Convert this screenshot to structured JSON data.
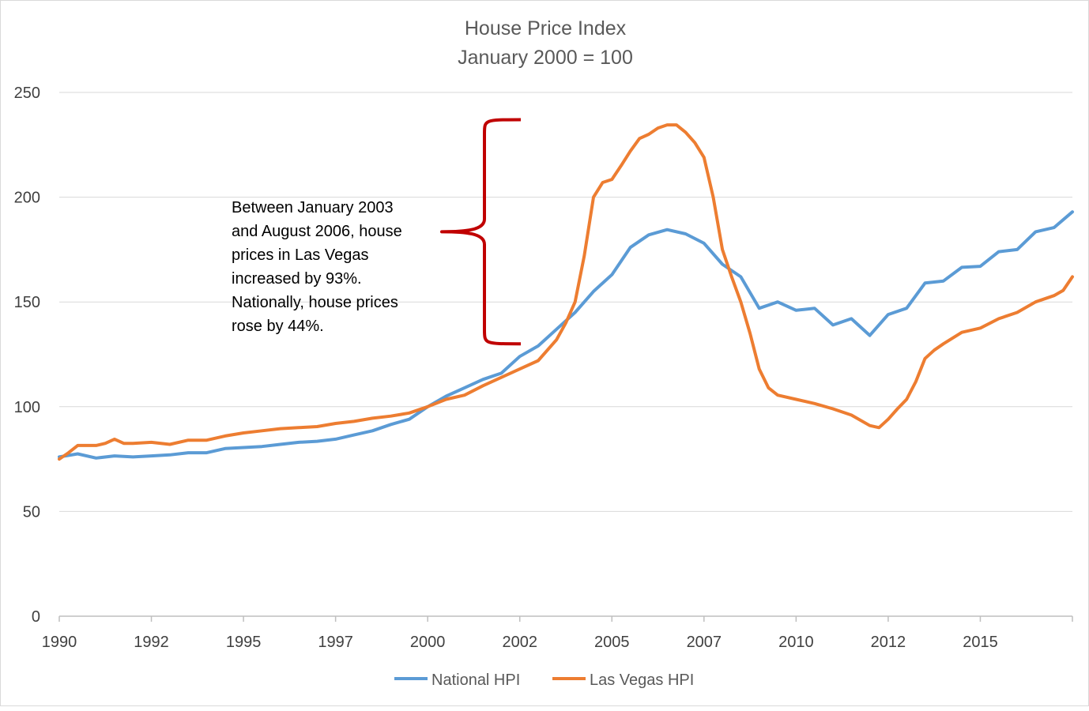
{
  "chart_data": {
    "type": "line",
    "title": "House Price Index",
    "subtitle": "January 2000 = 100",
    "xlabel": "",
    "ylabel": "",
    "ylim": [
      0,
      250
    ],
    "xlim": [
      1990.0,
      2017.5
    ],
    "yticks": [
      0,
      50,
      100,
      150,
      200,
      250
    ],
    "xtick_labels": [
      {
        "x": 1990.0,
        "label": "1990"
      },
      {
        "x": 1992.5,
        "label": "1992"
      },
      {
        "x": 1995.0,
        "label": "1995"
      },
      {
        "x": 1997.5,
        "label": "1997"
      },
      {
        "x": 2000.0,
        "label": "2000"
      },
      {
        "x": 2002.5,
        "label": "2002"
      },
      {
        "x": 2005.0,
        "label": "2005"
      },
      {
        "x": 2007.5,
        "label": "2007"
      },
      {
        "x": 2010.0,
        "label": "2010"
      },
      {
        "x": 2012.5,
        "label": "2012"
      },
      {
        "x": 2015.0,
        "label": "2015"
      }
    ],
    "grid": true,
    "legend_position": "bottom",
    "series": [
      {
        "name": "National HPI",
        "color": "#5b9bd5",
        "points": [
          [
            1990.0,
            76
          ],
          [
            1990.5,
            77.5
          ],
          [
            1991.0,
            75.5
          ],
          [
            1991.5,
            76.5
          ],
          [
            1992.0,
            76
          ],
          [
            1992.5,
            76.5
          ],
          [
            1993.0,
            77
          ],
          [
            1993.5,
            78
          ],
          [
            1994.0,
            78
          ],
          [
            1994.5,
            80
          ],
          [
            1995.0,
            80.5
          ],
          [
            1995.5,
            81
          ],
          [
            1996.0,
            82
          ],
          [
            1996.5,
            83
          ],
          [
            1997.0,
            83.5
          ],
          [
            1997.5,
            84.5
          ],
          [
            1998.0,
            86.5
          ],
          [
            1998.5,
            88.5
          ],
          [
            1999.0,
            91.5
          ],
          [
            1999.5,
            94
          ],
          [
            2000.0,
            100
          ],
          [
            2000.5,
            105
          ],
          [
            2001.0,
            109
          ],
          [
            2001.5,
            113
          ],
          [
            2002.0,
            116
          ],
          [
            2002.5,
            124
          ],
          [
            2003.0,
            129
          ],
          [
            2003.5,
            137
          ],
          [
            2004.0,
            145
          ],
          [
            2004.5,
            155
          ],
          [
            2005.0,
            163
          ],
          [
            2005.5,
            176
          ],
          [
            2006.0,
            182
          ],
          [
            2006.5,
            184.5
          ],
          [
            2007.0,
            182.5
          ],
          [
            2007.5,
            178
          ],
          [
            2008.0,
            168
          ],
          [
            2008.5,
            162
          ],
          [
            2009.0,
            147
          ],
          [
            2009.5,
            150
          ],
          [
            2010.0,
            146
          ],
          [
            2010.5,
            147
          ],
          [
            2011.0,
            139
          ],
          [
            2011.5,
            142
          ],
          [
            2012.0,
            134
          ],
          [
            2012.5,
            144
          ],
          [
            2013.0,
            147
          ],
          [
            2013.5,
            159
          ],
          [
            2014.0,
            160
          ],
          [
            2014.5,
            166.5
          ],
          [
            2015.0,
            167
          ],
          [
            2015.5,
            174
          ],
          [
            2016.0,
            175
          ],
          [
            2016.5,
            183.5
          ],
          [
            2017.0,
            185.5
          ],
          [
            2017.5,
            193
          ]
        ]
      },
      {
        "name": "Las Vegas HPI",
        "color": "#ed7d31",
        "points": [
          [
            1990.0,
            75
          ],
          [
            1990.25,
            78
          ],
          [
            1990.5,
            81.5
          ],
          [
            1991.0,
            81.5
          ],
          [
            1991.25,
            82.5
          ],
          [
            1991.5,
            84.5
          ],
          [
            1991.75,
            82.5
          ],
          [
            1992.0,
            82.5
          ],
          [
            1992.5,
            83
          ],
          [
            1993.0,
            82
          ],
          [
            1993.5,
            84
          ],
          [
            1994.0,
            84
          ],
          [
            1994.5,
            86
          ],
          [
            1995.0,
            87.5
          ],
          [
            1995.5,
            88.5
          ],
          [
            1996.0,
            89.5
          ],
          [
            1996.5,
            90
          ],
          [
            1997.0,
            90.5
          ],
          [
            1997.5,
            92
          ],
          [
            1998.0,
            93
          ],
          [
            1998.5,
            94.5
          ],
          [
            1999.0,
            95.5
          ],
          [
            1999.5,
            97
          ],
          [
            2000.0,
            100
          ],
          [
            2000.5,
            103.5
          ],
          [
            2001.0,
            105.5
          ],
          [
            2001.5,
            110
          ],
          [
            2002.0,
            114
          ],
          [
            2002.5,
            118
          ],
          [
            2003.0,
            122
          ],
          [
            2003.5,
            132
          ],
          [
            2003.75,
            140
          ],
          [
            2004.0,
            150
          ],
          [
            2004.25,
            172
          ],
          [
            2004.5,
            200
          ],
          [
            2004.75,
            207
          ],
          [
            2005.0,
            208.5
          ],
          [
            2005.25,
            215
          ],
          [
            2005.5,
            222
          ],
          [
            2005.75,
            228
          ],
          [
            2006.0,
            230
          ],
          [
            2006.25,
            233
          ],
          [
            2006.5,
            234.5
          ],
          [
            2006.75,
            234.5
          ],
          [
            2007.0,
            231
          ],
          [
            2007.25,
            226
          ],
          [
            2007.5,
            219
          ],
          [
            2007.75,
            200
          ],
          [
            2008.0,
            175
          ],
          [
            2008.25,
            162
          ],
          [
            2008.5,
            150
          ],
          [
            2008.75,
            135
          ],
          [
            2009.0,
            118
          ],
          [
            2009.25,
            109
          ],
          [
            2009.5,
            105.5
          ],
          [
            2010.0,
            103.5
          ],
          [
            2010.5,
            101.5
          ],
          [
            2011.0,
            99
          ],
          [
            2011.5,
            96
          ],
          [
            2012.0,
            91
          ],
          [
            2012.25,
            90
          ],
          [
            2012.5,
            94
          ],
          [
            2012.75,
            99
          ],
          [
            2013.0,
            103.5
          ],
          [
            2013.25,
            112
          ],
          [
            2013.5,
            123
          ],
          [
            2013.75,
            127
          ],
          [
            2014.0,
            130
          ],
          [
            2014.5,
            135.5
          ],
          [
            2015.0,
            137.5
          ],
          [
            2015.5,
            142
          ],
          [
            2016.0,
            145
          ],
          [
            2016.5,
            150
          ],
          [
            2017.0,
            153
          ],
          [
            2017.25,
            155.5
          ],
          [
            2017.5,
            162
          ]
        ]
      }
    ],
    "annotation": {
      "lines": [
        "Between January 2003",
        "and August 2006, house",
        "prices in Las Vegas",
        "increased by 93%.",
        "Nationally, house prices",
        "rose by 44%."
      ],
      "bracket_color": "#c00000",
      "bracket_range": [
        130,
        237
      ]
    }
  }
}
